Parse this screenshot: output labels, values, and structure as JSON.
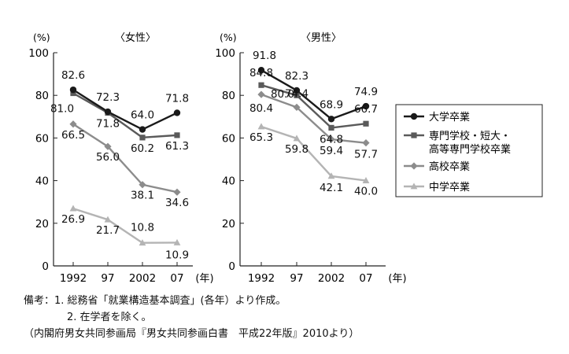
{
  "chart_data": [
    {
      "type": "line",
      "panel": "female",
      "title": "〈女性〉",
      "unit_label": "(%)",
      "x_label": "(年)",
      "categories": [
        "1992",
        "97",
        "2002",
        "07"
      ],
      "ylim": [
        0,
        100
      ],
      "yticks": [
        "0",
        "20",
        "40",
        "60",
        "80",
        "100"
      ],
      "series": [
        {
          "key": "univ",
          "name": "大学卒業",
          "values": [
            82.6,
            72.3,
            64.0,
            71.8
          ],
          "labels": [
            "82.6",
            "72.3",
            "64.0",
            "71.8"
          ]
        },
        {
          "key": "vocational",
          "name": "専門学校・短大・高等専門学校卒業",
          "values": [
            81.0,
            71.8,
            60.2,
            61.3
          ],
          "labels": [
            "81.0",
            "71.8",
            "60.2",
            "61.3"
          ]
        },
        {
          "key": "high",
          "name": "高校卒業",
          "values": [
            66.5,
            56.0,
            38.1,
            34.6
          ],
          "labels": [
            "66.5",
            "56.0",
            "38.1",
            "34.6"
          ]
        },
        {
          "key": "junior",
          "name": "中学卒業",
          "values": [
            26.9,
            21.7,
            10.8,
            10.9
          ],
          "labels": [
            "26.9",
            "21.7",
            "10.8",
            "10.9"
          ]
        }
      ]
    },
    {
      "type": "line",
      "panel": "male",
      "title": "〈男性〉",
      "unit_label": "(%)",
      "x_label": "(年)",
      "categories": [
        "1992",
        "97",
        "2002",
        "07"
      ],
      "ylim": [
        0,
        100
      ],
      "yticks": [
        "0",
        "20",
        "40",
        "60",
        "80",
        "100"
      ],
      "series": [
        {
          "key": "univ",
          "name": "大学卒業",
          "values": [
            91.8,
            82.3,
            68.9,
            74.9
          ],
          "labels": [
            "91.8",
            "82.3",
            "68.9",
            "74.9"
          ]
        },
        {
          "key": "vocational",
          "name": "専門学校・短大・高等専門学校卒業",
          "values": [
            84.8,
            80.0,
            64.8,
            66.7
          ],
          "labels": [
            "84.8",
            "80.0",
            "64.8",
            "66.7"
          ]
        },
        {
          "key": "high",
          "name": "高校卒業",
          "values": [
            80.4,
            74.4,
            59.4,
            57.7
          ],
          "labels": [
            "80.4",
            "74.4",
            "59.4",
            "57.7"
          ]
        },
        {
          "key": "junior",
          "name": "中学卒業",
          "values": [
            65.3,
            59.8,
            42.1,
            40.0
          ],
          "labels": [
            "65.3",
            "59.8",
            "42.1",
            "40.0"
          ]
        }
      ]
    }
  ],
  "legend": {
    "items": [
      {
        "key": "univ",
        "lines": [
          "大学卒業"
        ]
      },
      {
        "key": "vocational",
        "lines": [
          "専門学校・短大・",
          "高等専門学校卒業"
        ]
      },
      {
        "key": "high",
        "lines": [
          "高校卒業"
        ]
      },
      {
        "key": "junior",
        "lines": [
          "中学卒業"
        ]
      }
    ]
  },
  "series_style": {
    "univ": {
      "color": "#1a1a1a",
      "marker": "circle"
    },
    "vocational": {
      "color": "#5a5a5a",
      "marker": "square"
    },
    "high": {
      "color": "#8c8c8c",
      "marker": "diamond"
    },
    "junior": {
      "color": "#b4b4b4",
      "marker": "triangle"
    }
  },
  "notes": {
    "line1": "備考：1. 総務省「就業構造基本調査」(各年）より作成。",
    "line2": "2. 在学者を除く。",
    "source": "（内閣府男女共同参画局『男女共同参画白書　平成22年版』2010より）"
  }
}
